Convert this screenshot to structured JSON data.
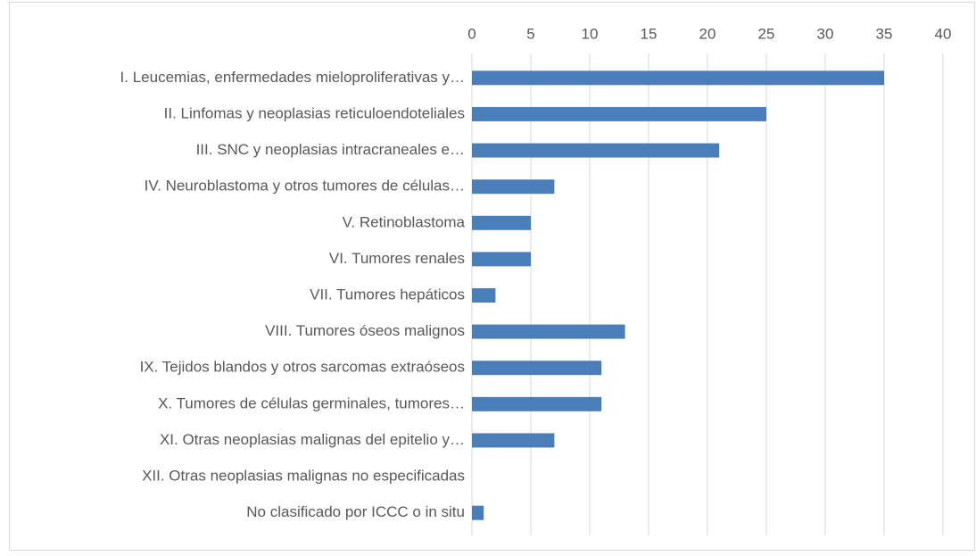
{
  "chart_data": {
    "type": "bar",
    "orientation": "horizontal",
    "categories": [
      "I. Leucemias, enfermedades mieloproliferativas y…",
      "II. Linfomas y neoplasias reticuloendoteliales",
      "III. SNC y neoplasias intracraneales e…",
      "IV. Neuroblastoma y otros tumores de células…",
      "V. Retinoblastoma",
      "VI. Tumores renales",
      "VII. Tumores hepáticos",
      "VIII. Tumores óseos malignos",
      "IX. Tejidos blandos y otros sarcomas extraóseos",
      "X. Tumores de células germinales, tumores…",
      "XI. Otras neoplasias malignas del epitelio y…",
      "XII. Otras neoplasias malignas no especificadas",
      "No clasificado por ICCC o in situ"
    ],
    "values": [
      35,
      25,
      21,
      7,
      5,
      5,
      2,
      13,
      11,
      11,
      7,
      0,
      1
    ],
    "color": "#4a7ebb",
    "xlim": [
      0,
      40
    ],
    "xticks": [
      0,
      5,
      10,
      15,
      20,
      25,
      30,
      35,
      40
    ],
    "grid": true
  }
}
